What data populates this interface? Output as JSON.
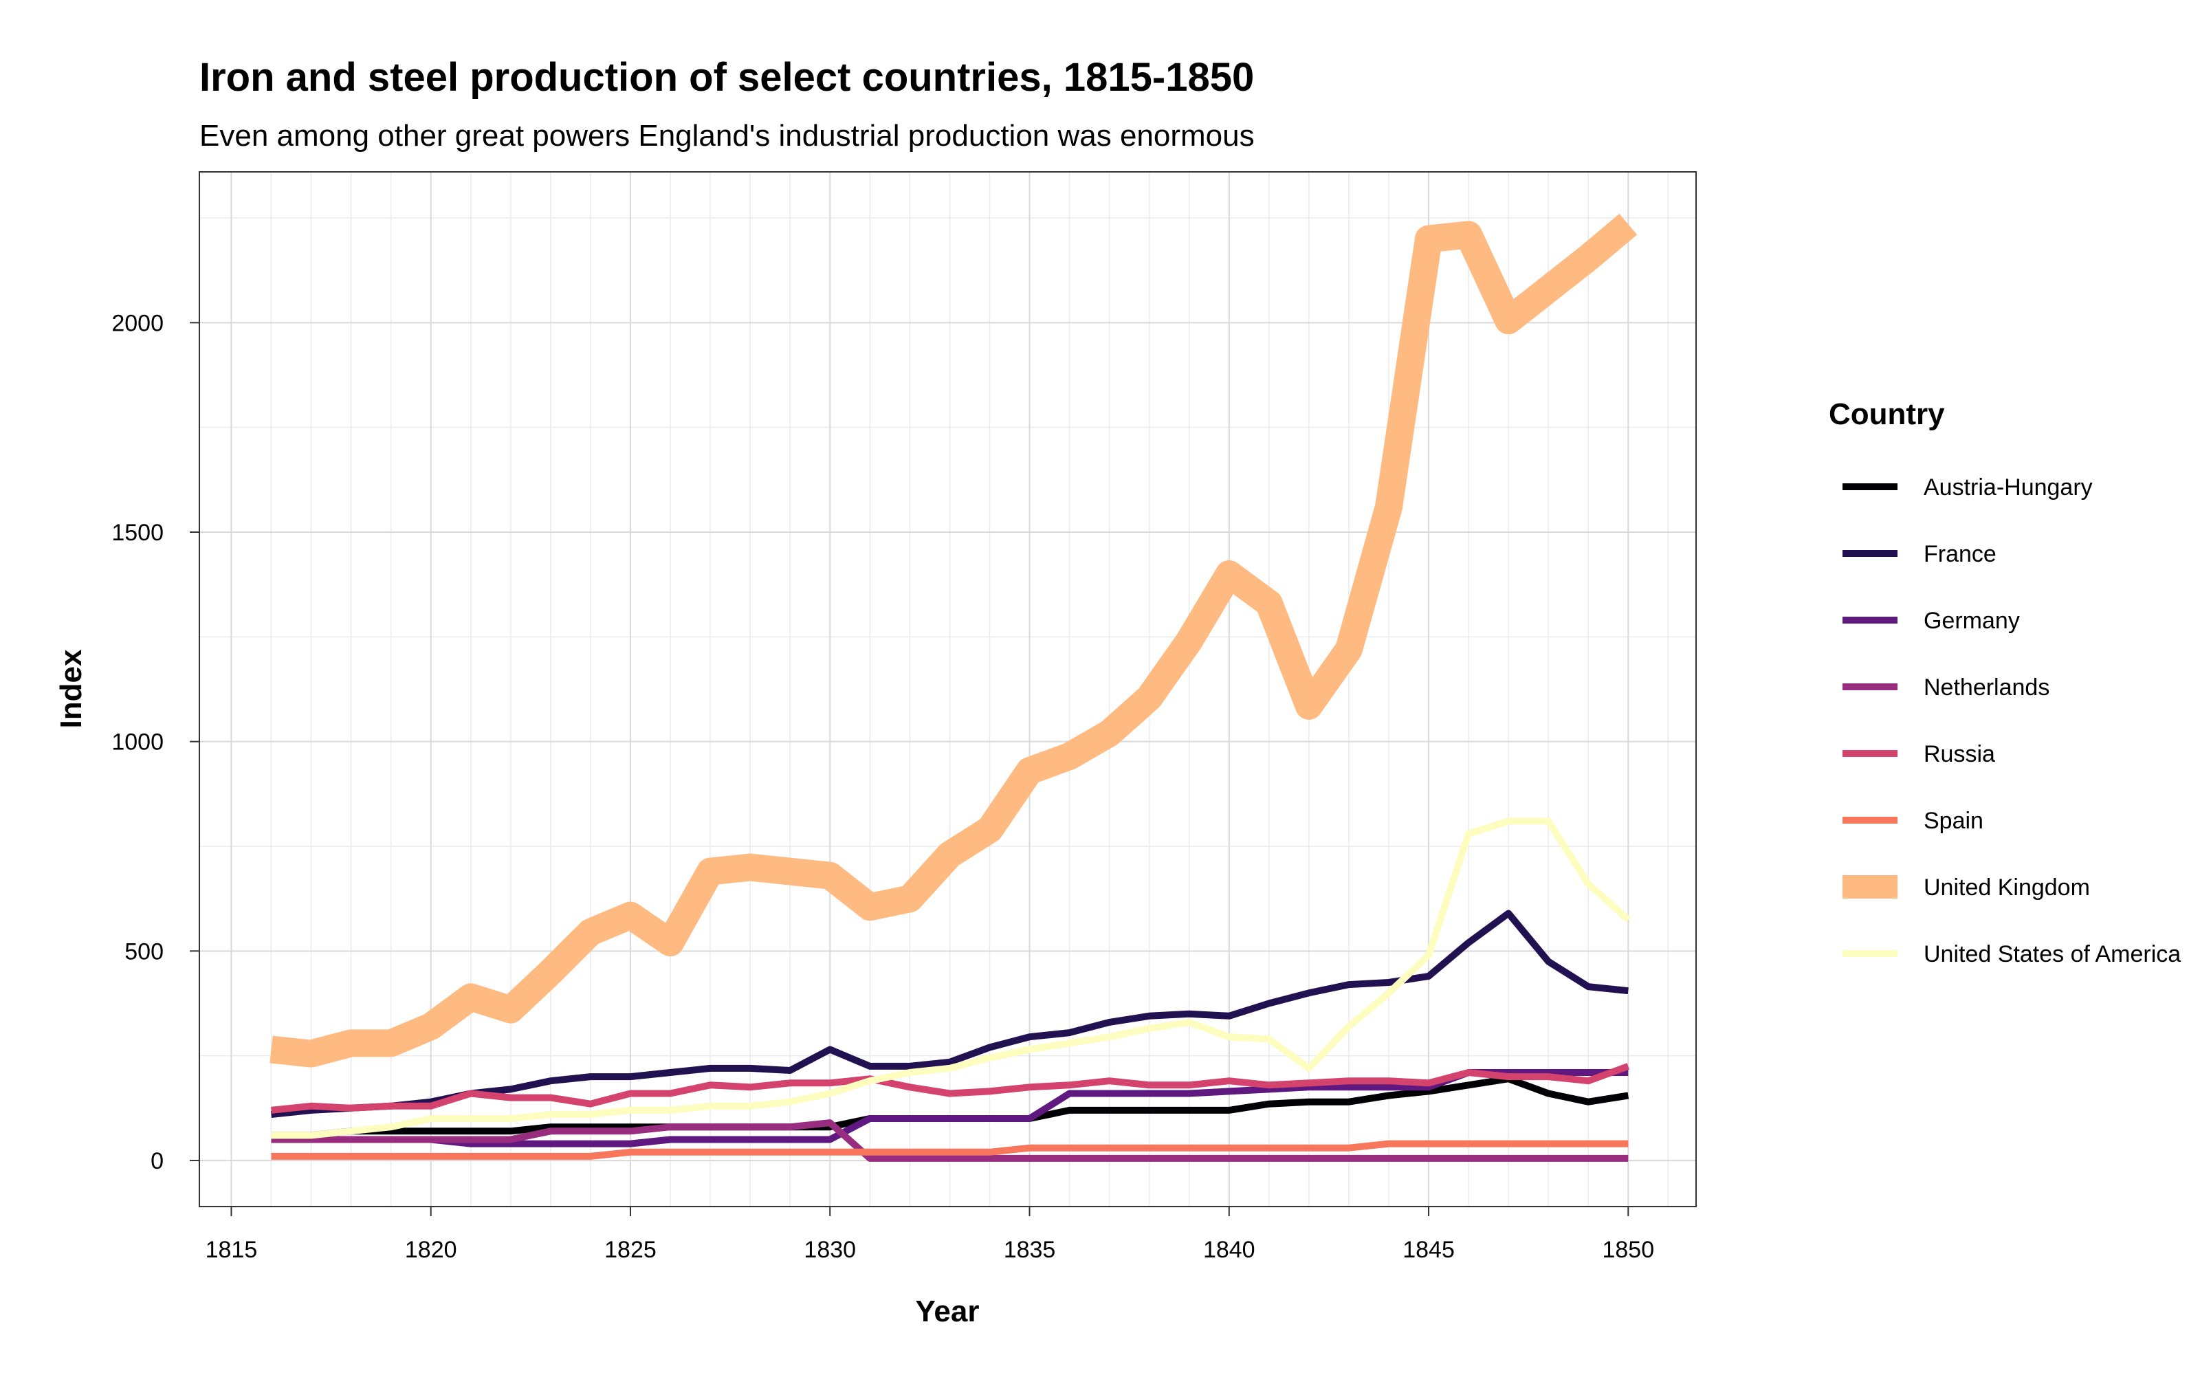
{
  "chart_data": {
    "type": "line",
    "title": "Iron and steel production of select countries, 1815-1850",
    "subtitle": "Even among other great powers England's industrial production was enormous",
    "xlabel": "Year",
    "ylabel": "Index",
    "xlim": [
      1814.2,
      1851.7
    ],
    "ylim": [
      -110,
      2360
    ],
    "xticks": [
      1815,
      1820,
      1825,
      1830,
      1835,
      1840,
      1845,
      1850
    ],
    "yticks": [
      0,
      500,
      1000,
      1500,
      2000
    ],
    "grid": true,
    "legend": {
      "title": "Country",
      "position": "right"
    },
    "x": [
      1816,
      1817,
      1818,
      1819,
      1820,
      1821,
      1822,
      1823,
      1824,
      1825,
      1826,
      1827,
      1828,
      1829,
      1830,
      1831,
      1832,
      1833,
      1834,
      1835,
      1836,
      1837,
      1838,
      1839,
      1840,
      1841,
      1842,
      1843,
      1844,
      1845,
      1846,
      1847,
      1848,
      1849,
      1850
    ],
    "series": [
      {
        "name": "Austria-Hungary",
        "color": "#000004",
        "width": "thin",
        "values": [
          60,
          60,
          70,
          70,
          70,
          70,
          70,
          80,
          80,
          80,
          80,
          80,
          80,
          80,
          80,
          100,
          100,
          100,
          100,
          100,
          120,
          120,
          120,
          120,
          120,
          135,
          140,
          140,
          155,
          165,
          180,
          195,
          160,
          140,
          155
        ]
      },
      {
        "name": "France",
        "color": "#221150",
        "width": "thin",
        "values": [
          110,
          120,
          125,
          130,
          140,
          160,
          170,
          190,
          200,
          200,
          210,
          220,
          220,
          215,
          265,
          225,
          225,
          235,
          270,
          295,
          305,
          330,
          345,
          350,
          345,
          375,
          400,
          420,
          425,
          440,
          520,
          590,
          475,
          415,
          405
        ]
      },
      {
        "name": "Germany",
        "color": "#5F187F",
        "width": "thin",
        "values": [
          50,
          50,
          50,
          50,
          50,
          40,
          40,
          40,
          40,
          40,
          50,
          50,
          50,
          50,
          50,
          100,
          100,
          100,
          100,
          100,
          160,
          160,
          160,
          160,
          165,
          170,
          175,
          175,
          175,
          175,
          210,
          210,
          210,
          210,
          210
        ]
      },
      {
        "name": "Netherlands",
        "color": "#982D80",
        "width": "thin",
        "values": [
          50,
          50,
          50,
          50,
          50,
          50,
          50,
          70,
          70,
          70,
          80,
          80,
          80,
          80,
          90,
          5,
          5,
          5,
          5,
          5,
          5,
          5,
          5,
          5,
          5,
          5,
          5,
          5,
          5,
          5,
          5,
          5,
          5,
          5,
          5
        ]
      },
      {
        "name": "Russia",
        "color": "#D3436E",
        "width": "thin",
        "values": [
          120,
          130,
          125,
          130,
          130,
          160,
          150,
          150,
          135,
          160,
          160,
          180,
          175,
          185,
          185,
          195,
          175,
          160,
          165,
          175,
          180,
          190,
          180,
          180,
          190,
          180,
          185,
          190,
          190,
          185,
          210,
          200,
          200,
          190,
          225
        ]
      },
      {
        "name": "Spain",
        "color": "#F8765C",
        "width": "thin",
        "values": [
          10,
          10,
          10,
          10,
          10,
          10,
          10,
          10,
          10,
          20,
          20,
          20,
          20,
          20,
          20,
          20,
          20,
          20,
          20,
          30,
          30,
          30,
          30,
          30,
          30,
          30,
          30,
          30,
          40,
          40,
          40,
          40,
          40,
          40,
          40
        ]
      },
      {
        "name": "United Kingdom",
        "color": "#FEBA80",
        "width": "thick",
        "values": [
          265,
          255,
          280,
          280,
          320,
          390,
          360,
          450,
          545,
          585,
          520,
          690,
          700,
          690,
          680,
          605,
          625,
          730,
          790,
          930,
          965,
          1020,
          1105,
          1240,
          1400,
          1330,
          1085,
          1220,
          1560,
          2200,
          2210,
          2005,
          2080,
          2155,
          2235
        ]
      },
      {
        "name": "United States of America",
        "color": "#FCFDBF",
        "width": "thin",
        "values": [
          60,
          60,
          70,
          80,
          100,
          100,
          100,
          110,
          110,
          120,
          120,
          130,
          130,
          140,
          160,
          190,
          210,
          220,
          245,
          265,
          280,
          295,
          315,
          330,
          295,
          290,
          220,
          320,
          400,
          490,
          780,
          810,
          810,
          660,
          575
        ]
      }
    ]
  }
}
